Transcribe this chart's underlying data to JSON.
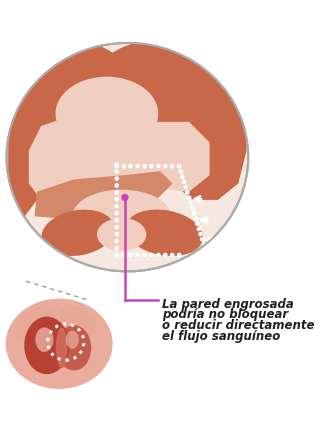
{
  "bg_color": "#ffffff",
  "ellipse_border_color": "#aaaaaa",
  "ellipse_bg": "#f5e8e0",
  "dark_orange": "#c86848",
  "mid_orange": "#d4886a",
  "light_orange": "#e8b89a",
  "pale_peach": "#f0cfc0",
  "very_pale": "#f8ece5",
  "cream_yellow": "#faf2dc",
  "magenta": "#cc44bb",
  "white": "#ffffff",
  "annotation_lines": [
    "La pared engrosada",
    "podría no bloquear",
    "o reducir directamente",
    "el flujo sanguíneo"
  ],
  "annotation_fontsize": 8.5,
  "heart_outer": "#e8a898",
  "heart_dark": "#b84030",
  "heart_mid": "#cc6855",
  "heart_pale": "#f0c0b0",
  "dashed_color": "#999999",
  "text_color": "#222222"
}
